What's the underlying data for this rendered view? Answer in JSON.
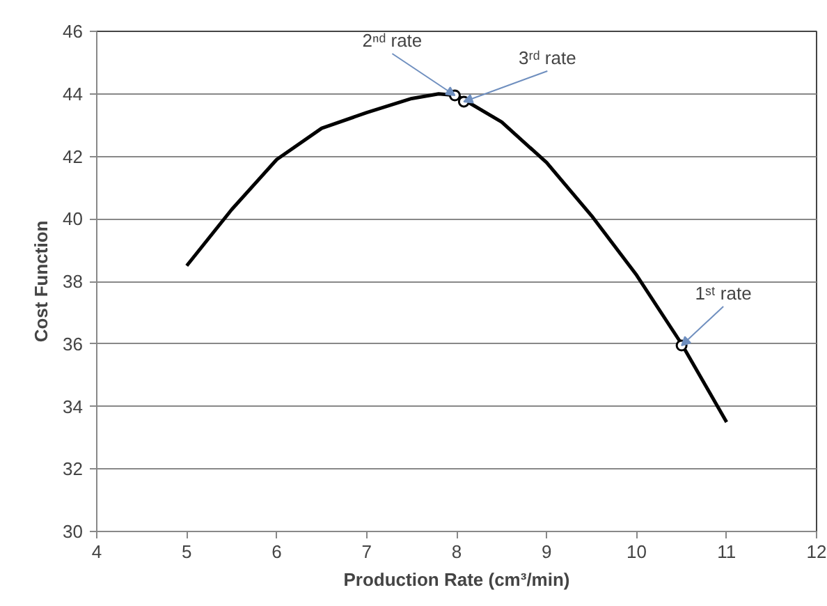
{
  "chart_data": {
    "type": "line",
    "xlabel": "Production Rate (cm³/min)",
    "ylabel": "Cost Function",
    "xlim": [
      4,
      12
    ],
    "xticks": [
      4,
      5,
      6,
      7,
      8,
      9,
      10,
      11,
      12
    ],
    "ylim": [
      30,
      46
    ],
    "yticks": [
      30,
      32,
      34,
      36,
      38,
      40,
      42,
      44,
      46
    ],
    "grid": "y",
    "series": [
      {
        "color": "#000000",
        "marker": "none",
        "x": [
          5,
          5.5,
          6,
          6.5,
          7,
          7.5,
          7.8,
          8,
          8.5,
          9,
          9.5,
          10,
          10.5,
          11
        ],
        "values": [
          38.5,
          40.3,
          41.9,
          42.9,
          43.4,
          43.85,
          44.0,
          43.95,
          43.1,
          41.8,
          40.1,
          38.2,
          36.0,
          33.5
        ]
      },
      {
        "type": "scatter",
        "color": "#000000",
        "marker": "circle",
        "x": [
          7.98,
          8.08,
          10.5
        ],
        "values": [
          43.95,
          43.75,
          35.95
        ]
      }
    ],
    "annotations": [
      {
        "text": "2ⁿᵈ rate",
        "x": 7.98,
        "y": 43.95
      },
      {
        "text": "3ʳᵈ rate",
        "x": 8.08,
        "y": 43.75
      },
      {
        "text": "1ˢᵗ rate",
        "x": 10.5,
        "y": 35.95
      }
    ]
  }
}
